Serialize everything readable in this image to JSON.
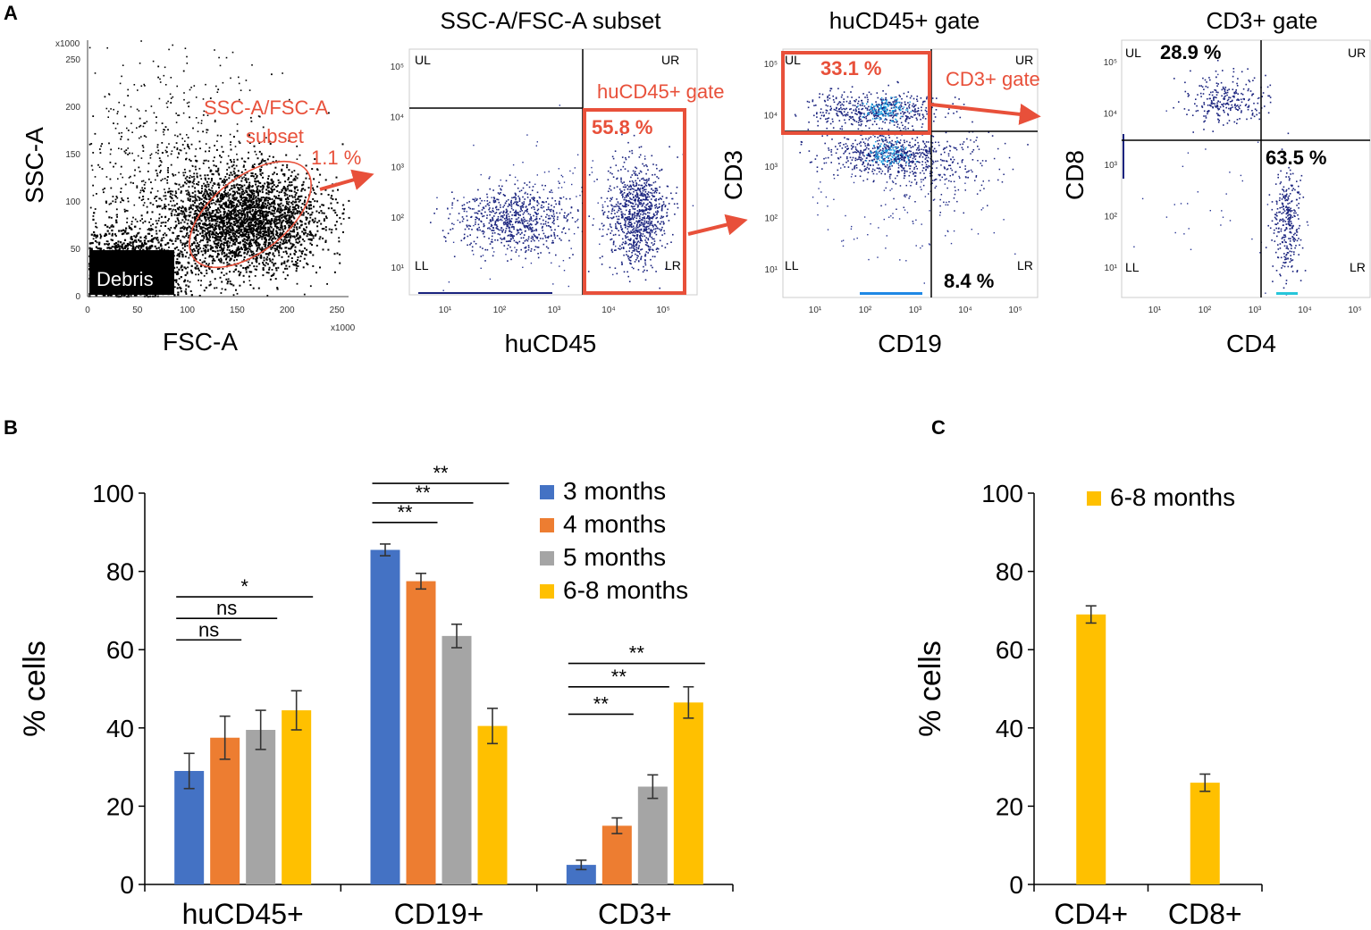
{
  "panelA": {
    "letter": "A",
    "plot1": {
      "xlabel": "FSC-A",
      "ylabel": "SSC-A",
      "xticks": [
        "0",
        "50",
        "100",
        "150",
        "200",
        "250"
      ],
      "yticks": [
        "0",
        "50",
        "100",
        "150",
        "200",
        "250"
      ],
      "x1000a": "x1000",
      "x1000b": "x1000",
      "gate_label_line1": "SSC-A/FSC-A",
      "gate_label_line2": "subset",
      "gate_pct": "1.1 %",
      "debris": "Debris"
    },
    "plot2": {
      "title": "SSC-A/FSC-A subset",
      "xlabel": "huCD45",
      "UL": "UL",
      "UR": "UR",
      "LL": "LL",
      "LR": "LR",
      "gate_label": "huCD45+ gate",
      "gate_pct": "55.8 %",
      "xticks": [
        "10¹",
        "10²",
        "10³",
        "10⁴",
        "10⁵"
      ],
      "yticks": [
        "10⁵",
        "10⁴",
        "10³",
        "10²",
        "10¹"
      ]
    },
    "plot3": {
      "title": "huCD45+ gate",
      "xlabel": "CD19",
      "ylabel": "CD3",
      "UL": "UL",
      "UR": "UR",
      "LL": "LL",
      "LR": "LR",
      "gate_label": "CD3+ gate",
      "gate_pct": "33.1 %",
      "lr_pct": "8.4 %",
      "xticks": [
        "10¹",
        "10²",
        "10³",
        "10⁴",
        "10⁵"
      ],
      "yticks": [
        "10⁵",
        "10⁴",
        "10³",
        "10²",
        "10¹"
      ]
    },
    "plot4": {
      "title": "CD3+ gate",
      "xlabel": "CD4",
      "ylabel": "CD8",
      "UL": "UL",
      "UR": "UR",
      "LL": "LL",
      "LR": "LR",
      "ul_pct": "28.9 %",
      "lr_pct": "63.5 %",
      "xticks": [
        "10¹",
        "10²",
        "10³",
        "10⁴",
        "10⁵"
      ],
      "yticks": [
        "10⁵",
        "10⁴",
        "10³",
        "10²",
        "10¹"
      ]
    }
  },
  "chart_data": [
    {
      "panel": "B",
      "type": "bar",
      "ylabel": "% cells",
      "ylim": [
        0,
        100
      ],
      "yticks": [
        "0",
        "20",
        "40",
        "60",
        "80",
        "100"
      ],
      "categories": [
        "huCD45+",
        "CD19+",
        "CD3+"
      ],
      "series": [
        {
          "name": "3 months",
          "color": "#4472c4",
          "values": [
            29,
            85.5,
            5
          ],
          "errors": [
            4.5,
            1.5,
            1.2
          ]
        },
        {
          "name": "4 months",
          "color": "#ed7d31",
          "values": [
            37.5,
            77.5,
            15
          ],
          "errors": [
            5.5,
            2,
            2
          ]
        },
        {
          "name": "5 months",
          "color": "#a5a5a5",
          "values": [
            39.5,
            63.5,
            25
          ],
          "errors": [
            5,
            3,
            3
          ]
        },
        {
          "name": "6-8 months",
          "color": "#ffc000",
          "values": [
            44.5,
            40.5,
            46.5
          ],
          "errors": [
            5,
            4.5,
            4
          ]
        }
      ],
      "significance": [
        {
          "label": "ns",
          "category": 0,
          "from": 0,
          "to": 1,
          "y": 62.5
        },
        {
          "label": "ns",
          "category": 0,
          "from": 0,
          "to": 2,
          "y": 68
        },
        {
          "label": "*",
          "category": 0,
          "from": 0,
          "to": 3,
          "y": 73.5
        },
        {
          "label": "**",
          "category": 1,
          "from": 0,
          "to": 1,
          "y": 92.5
        },
        {
          "label": "**",
          "category": 1,
          "from": 0,
          "to": 2,
          "y": 97.5
        },
        {
          "label": "**",
          "category": 1,
          "from": 0,
          "to": 3,
          "y": 102.5
        },
        {
          "label": "**",
          "category": 2,
          "from": 0,
          "to": 1,
          "y": 43.5
        },
        {
          "label": "**",
          "category": 2,
          "from": 0,
          "to": 2,
          "y": 50.5
        },
        {
          "label": "**",
          "category": 2,
          "from": 0,
          "to": 3,
          "y": 56.5
        }
      ]
    },
    {
      "panel": "C",
      "type": "bar",
      "ylabel": "% cells",
      "ylim": [
        0,
        100
      ],
      "yticks": [
        "0",
        "20",
        "40",
        "60",
        "80",
        "100"
      ],
      "categories": [
        "CD4+",
        "CD8+"
      ],
      "series": [
        {
          "name": "6-8 months",
          "color": "#ffc000",
          "values": [
            69,
            26
          ],
          "errors": [
            2.2,
            2.2
          ]
        }
      ]
    }
  ],
  "panelB_letter": "B",
  "panelC_letter": "C"
}
